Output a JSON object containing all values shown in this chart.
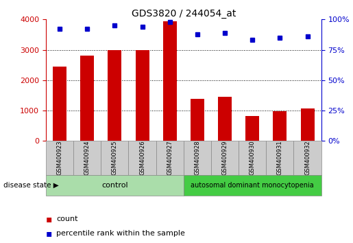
{
  "title": "GDS3820 / 244054_at",
  "samples": [
    "GSM400923",
    "GSM400924",
    "GSM400925",
    "GSM400926",
    "GSM400927",
    "GSM400928",
    "GSM400929",
    "GSM400930",
    "GSM400931",
    "GSM400932"
  ],
  "counts": [
    2450,
    2800,
    3000,
    3000,
    3950,
    1390,
    1450,
    810,
    970,
    1060
  ],
  "percentiles": [
    92,
    92,
    95,
    94,
    98,
    88,
    89,
    83,
    85,
    86
  ],
  "groups": [
    "control",
    "control",
    "control",
    "control",
    "control",
    "autosomal dominant monocytopenia",
    "autosomal dominant monocytopenia",
    "autosomal dominant monocytopenia",
    "autosomal dominant monocytopenia",
    "autosomal dominant monocytopenia"
  ],
  "bar_color": "#cc0000",
  "dot_color": "#0000cc",
  "left_ylim": [
    0,
    4000
  ],
  "left_yticks": [
    0,
    1000,
    2000,
    3000,
    4000
  ],
  "right_ylim": [
    0,
    100
  ],
  "right_yticks": [
    0,
    25,
    50,
    75,
    100
  ],
  "control_color": "#aaddaa",
  "disease_color": "#44cc44",
  "label_bg": "#cccccc",
  "legend_count_label": "count",
  "legend_pct_label": "percentile rank within the sample",
  "disease_state_label": "disease state"
}
